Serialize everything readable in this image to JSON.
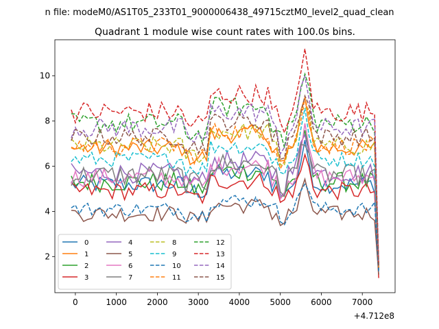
{
  "figure": {
    "suptitle": "n file: modeM0/AS1T05_233T01_9000006438_49715cztM0_level2_quad_clean",
    "offset_label": "+4.712e8"
  },
  "chart_data": {
    "type": "line",
    "title": "Quadrant 1 module wise count rates with 100.0s bins.",
    "xlabel": "",
    "ylabel": "",
    "xlim": [
      -500,
      7800
    ],
    "ylim": [
      0.4,
      11.6
    ],
    "x_offset": 471200000,
    "xticks": [
      0,
      1000,
      2000,
      3000,
      4000,
      5000,
      6000,
      7000
    ],
    "xtick_labels": [
      "0",
      "1000",
      "2000",
      "3000",
      "4000",
      "5000",
      "6000",
      "7000"
    ],
    "yticks": [
      2,
      4,
      6,
      8,
      10
    ],
    "ytick_labels": [
      "2",
      "4",
      "6",
      "8",
      "10"
    ],
    "grid": false,
    "legend_position": "lower-left",
    "legend_columns": 4,
    "x": [
      -100,
      0,
      100,
      200,
      300,
      400,
      500,
      600,
      700,
      800,
      900,
      1000,
      1100,
      1200,
      1300,
      1400,
      1500,
      1600,
      1700,
      1800,
      1900,
      2000,
      2100,
      2200,
      2300,
      2400,
      2500,
      2600,
      2700,
      2800,
      2900,
      3000,
      3100,
      3200,
      3300,
      3400,
      3500,
      3600,
      3700,
      3800,
      3900,
      4000,
      4100,
      4200,
      4300,
      4400,
      4500,
      4600,
      4700,
      4800,
      4900,
      5000,
      5100,
      5200,
      5300,
      5400,
      5500,
      5600,
      5700,
      5800,
      5900,
      6000,
      6100,
      6200,
      6300,
      6400,
      6500,
      6600,
      6700,
      6800,
      6900,
      7000,
      7100,
      7200,
      7300,
      7400
    ],
    "series": [
      {
        "name": "0",
        "color": "#1f77b4",
        "dash": "solid",
        "base": 5.2,
        "amp": 0.25,
        "peak": 1.6,
        "end": 1.4
      },
      {
        "name": "1",
        "color": "#ff7f0e",
        "dash": "solid",
        "base": 6.8,
        "amp": 0.25,
        "peak": 2.1,
        "end": 1.5
      },
      {
        "name": "2",
        "color": "#2ca02c",
        "dash": "solid",
        "base": 5.3,
        "amp": 0.28,
        "peak": 1.9,
        "end": 1.4
      },
      {
        "name": "3",
        "color": "#d62728",
        "dash": "solid",
        "base": 4.9,
        "amp": 0.25,
        "peak": 1.5,
        "end": 1.05
      },
      {
        "name": "4",
        "color": "#9467bd",
        "dash": "solid",
        "base": 5.7,
        "amp": 0.28,
        "peak": 1.9,
        "end": 1.4
      },
      {
        "name": "5",
        "color": "#8c564b",
        "dash": "solid",
        "base": 3.9,
        "amp": 0.22,
        "peak": 1.2,
        "end": 1.2
      },
      {
        "name": "6",
        "color": "#e377c2",
        "dash": "solid",
        "base": 5.5,
        "amp": 0.26,
        "peak": 2.0,
        "end": 1.4
      },
      {
        "name": "7",
        "color": "#7f7f7f",
        "dash": "solid",
        "base": 5.6,
        "amp": 0.3,
        "peak": 1.8,
        "end": 1.4
      },
      {
        "name": "8",
        "color": "#bcbd22",
        "dash": "dashed",
        "base": 6.9,
        "amp": 0.25,
        "peak": 2.0,
        "end": 1.5
      },
      {
        "name": "9",
        "color": "#17becf",
        "dash": "dashed",
        "base": 6.3,
        "amp": 0.22,
        "peak": 2.0,
        "end": 1.45
      },
      {
        "name": "10",
        "color": "#1f77b4",
        "dash": "dashed",
        "base": 4.1,
        "amp": 0.2,
        "peak": 1.3,
        "end": 1.3
      },
      {
        "name": "11",
        "color": "#ff7f0e",
        "dash": "dashed",
        "base": 6.9,
        "amp": 0.25,
        "peak": 2.0,
        "end": 1.5
      },
      {
        "name": "12",
        "color": "#2ca02c",
        "dash": "dashed",
        "base": 7.9,
        "amp": 0.28,
        "peak": 2.2,
        "end": 1.6
      },
      {
        "name": "13",
        "color": "#d62728",
        "dash": "dashed",
        "base": 8.4,
        "amp": 0.3,
        "peak": 2.6,
        "end": 1.7
      },
      {
        "name": "14",
        "color": "#9467bd",
        "dash": "dashed",
        "base": 7.7,
        "amp": 0.28,
        "peak": 2.2,
        "end": 1.6
      },
      {
        "name": "15",
        "color": "#8c564b",
        "dash": "dashed",
        "base": 7.3,
        "amp": 0.25,
        "peak": 2.1,
        "end": 1.5
      }
    ]
  }
}
